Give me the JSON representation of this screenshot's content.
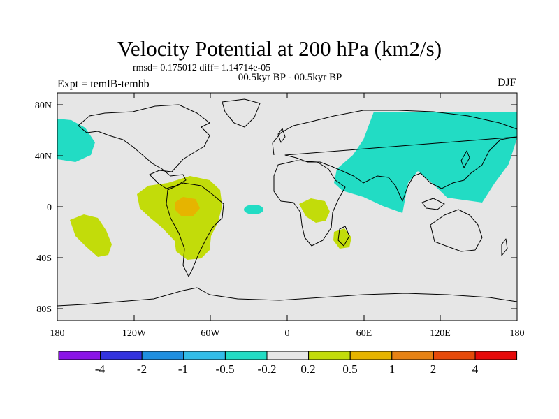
{
  "title": "Velocity Potential at 200 hPa (km2/s)",
  "stats": "rmsd= 0.175012 diff= 1.14714e-05",
  "period": "00.5kyr BP - 00.5kyr BP",
  "experiment": "Expt = temlB-temhb",
  "season": "DJF",
  "axes": {
    "lon_ticks": [
      "180",
      "120W",
      "60W",
      "0",
      "60E",
      "120E",
      "180"
    ],
    "lat_ticks": [
      "80N",
      "40N",
      "0",
      "40S",
      "80S"
    ]
  },
  "colorbar": {
    "colors": [
      "#8a14e6",
      "#3333dd",
      "#1f8fe0",
      "#33bde8",
      "#22dcc4",
      "#e6e6e6",
      "#c2dc0a",
      "#e6b400",
      "#e68214",
      "#e64a0a",
      "#e60a0a"
    ],
    "labels": [
      "-4",
      "-2",
      "-1",
      "-0.5",
      "-0.2",
      "0.2",
      "0.5",
      "1",
      "2",
      "4"
    ]
  },
  "colors": {
    "ocean_background": "#e6e6e6",
    "positive_region": "#c2dc0a",
    "strong_positive_region": "#e6b400",
    "negative_region": "#22dcc4"
  }
}
